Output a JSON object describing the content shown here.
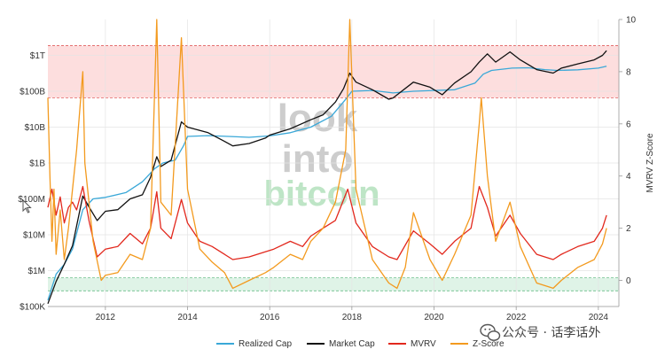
{
  "chart_data": {
    "type": "line",
    "x_ticks": [
      "2012",
      "2014",
      "2016",
      "2018",
      "2020",
      "2022",
      "2024"
    ],
    "x_range": [
      2010.6,
      2024.5
    ],
    "y_left_ticks": [
      "$100K",
      "$1M",
      "$10M",
      "$100M",
      "$1B",
      "$10B",
      "$100B",
      "$1T"
    ],
    "y_left_scale": "log",
    "y_left_range": [
      100000,
      10000000000000
    ],
    "y_right_ticks": [
      "0",
      "2",
      "4",
      "6",
      "8",
      "10"
    ],
    "y_right_range": [
      -1,
      10
    ],
    "y_right_label": "MVRV Z-Score",
    "bands": [
      {
        "name": "overvalued",
        "from": 7,
        "to": 9,
        "color": "#fddede"
      },
      {
        "name": "undervalued",
        "from": -0.4,
        "to": 0.1,
        "color": "#dff3e7"
      }
    ],
    "watermark": [
      "look",
      "into",
      "bitcoin"
    ],
    "series": [
      {
        "name": "Realized Cap",
        "color": "#3aa8d8",
        "axis": "left",
        "points": [
          [
            2010.6,
            150000.0
          ],
          [
            2010.8,
            800000.0
          ],
          [
            2011.0,
            1500000.0
          ],
          [
            2011.2,
            4000000.0
          ],
          [
            2011.45,
            50000000.0
          ],
          [
            2011.7,
            100000000.0
          ],
          [
            2012.0,
            110000000.0
          ],
          [
            2012.5,
            150000000.0
          ],
          [
            2012.9,
            300000000.0
          ],
          [
            2013.2,
            700000000.0
          ],
          [
            2013.4,
            1000000000.0
          ],
          [
            2013.7,
            1200000000.0
          ],
          [
            2013.9,
            3000000000.0
          ],
          [
            2014.0,
            5500000000.0
          ],
          [
            2014.5,
            5800000000.0
          ],
          [
            2015.0,
            5500000000.0
          ],
          [
            2015.5,
            5200000000.0
          ],
          [
            2016.0,
            5700000000.0
          ],
          [
            2016.5,
            7000000000.0
          ],
          [
            2017.0,
            10000000000.0
          ],
          [
            2017.5,
            20000000000.0
          ],
          [
            2017.9,
            70000000000.0
          ],
          [
            2018.0,
            100000000000.0
          ],
          [
            2018.5,
            105000000000.0
          ],
          [
            2019.0,
            90000000000.0
          ],
          [
            2019.5,
            100000000000.0
          ],
          [
            2020.0,
            105000000000.0
          ],
          [
            2020.5,
            110000000000.0
          ],
          [
            2021.0,
            170000000000.0
          ],
          [
            2021.2,
            300000000000.0
          ],
          [
            2021.4,
            380000000000.0
          ],
          [
            2021.9,
            440000000000.0
          ],
          [
            2022.3,
            450000000000.0
          ],
          [
            2022.7,
            400000000000.0
          ],
          [
            2023.0,
            380000000000.0
          ],
          [
            2023.5,
            395000000000.0
          ],
          [
            2024.0,
            440000000000.0
          ],
          [
            2024.2,
            500000000000.0
          ]
        ]
      },
      {
        "name": "Market Cap",
        "color": "#111111",
        "axis": "left",
        "points": [
          [
            2010.6,
            120000.0
          ],
          [
            2010.8,
            500000.0
          ],
          [
            2011.0,
            1500000.0
          ],
          [
            2011.2,
            5000000.0
          ],
          [
            2011.45,
            120000000.0
          ],
          [
            2011.6,
            60000000.0
          ],
          [
            2011.8,
            25000000.0
          ],
          [
            2012.0,
            45000000.0
          ],
          [
            2012.3,
            50000000.0
          ],
          [
            2012.6,
            100000000.0
          ],
          [
            2012.9,
            130000000.0
          ],
          [
            2013.1,
            400000000.0
          ],
          [
            2013.25,
            1500000000.0
          ],
          [
            2013.35,
            800000000.0
          ],
          [
            2013.6,
            1200000000.0
          ],
          [
            2013.85,
            14000000000.0
          ],
          [
            2014.0,
            10000000000.0
          ],
          [
            2014.5,
            7000000000.0
          ],
          [
            2014.9,
            4000000000.0
          ],
          [
            2015.1,
            3000000000.0
          ],
          [
            2015.5,
            3500000000.0
          ],
          [
            2015.9,
            5000000000.0
          ],
          [
            2016.0,
            6000000000.0
          ],
          [
            2016.5,
            9000000000.0
          ],
          [
            2017.0,
            16000000000.0
          ],
          [
            2017.3,
            22000000000.0
          ],
          [
            2017.6,
            50000000000.0
          ],
          [
            2017.8,
            120000000000.0
          ],
          [
            2017.95,
            320000000000.0
          ],
          [
            2018.1,
            180000000000.0
          ],
          [
            2018.5,
            110000000000.0
          ],
          [
            2018.9,
            60000000000.0
          ],
          [
            2019.0,
            65000000000.0
          ],
          [
            2019.5,
            180000000000.0
          ],
          [
            2019.9,
            130000000000.0
          ],
          [
            2020.2,
            80000000000.0
          ],
          [
            2020.5,
            170000000000.0
          ],
          [
            2020.9,
            350000000000.0
          ],
          [
            2021.1,
            650000000000.0
          ],
          [
            2021.3,
            1100000000000.0
          ],
          [
            2021.5,
            650000000000.0
          ],
          [
            2021.85,
            1250000000000.0
          ],
          [
            2022.1,
            750000000000.0
          ],
          [
            2022.5,
            400000000000.0
          ],
          [
            2022.9,
            320000000000.0
          ],
          [
            2023.1,
            440000000000.0
          ],
          [
            2023.5,
            580000000000.0
          ],
          [
            2023.9,
            750000000000.0
          ],
          [
            2024.1,
            1000000000000.0
          ],
          [
            2024.2,
            1350000000000.0
          ]
        ]
      },
      {
        "name": "MVRV",
        "color": "#e2281d",
        "axis": "right",
        "points": [
          [
            2010.6,
            2.8
          ],
          [
            2010.7,
            3.5
          ],
          [
            2010.8,
            2.5
          ],
          [
            2010.9,
            3.2
          ],
          [
            2011.0,
            2.2
          ],
          [
            2011.1,
            2.8
          ],
          [
            2011.2,
            3.0
          ],
          [
            2011.3,
            2.7
          ],
          [
            2011.45,
            3.6
          ],
          [
            2011.6,
            2.3
          ],
          [
            2011.8,
            0.9
          ],
          [
            2012.0,
            1.2
          ],
          [
            2012.3,
            1.3
          ],
          [
            2012.6,
            1.8
          ],
          [
            2012.9,
            1.4
          ],
          [
            2013.1,
            2.0
          ],
          [
            2013.25,
            3.4
          ],
          [
            2013.35,
            2.0
          ],
          [
            2013.6,
            1.6
          ],
          [
            2013.85,
            3.1
          ],
          [
            2014.0,
            2.2
          ],
          [
            2014.3,
            1.5
          ],
          [
            2014.6,
            1.3
          ],
          [
            2014.9,
            1.0
          ],
          [
            2015.1,
            0.8
          ],
          [
            2015.5,
            0.9
          ],
          [
            2015.9,
            1.1
          ],
          [
            2016.1,
            1.2
          ],
          [
            2016.5,
            1.5
          ],
          [
            2016.8,
            1.3
          ],
          [
            2017.0,
            1.7
          ],
          [
            2017.3,
            2.0
          ],
          [
            2017.6,
            2.3
          ],
          [
            2017.9,
            3.5
          ],
          [
            2018.1,
            2.2
          ],
          [
            2018.5,
            1.3
          ],
          [
            2018.9,
            0.9
          ],
          [
            2019.1,
            0.8
          ],
          [
            2019.5,
            1.9
          ],
          [
            2019.9,
            1.4
          ],
          [
            2020.2,
            1.0
          ],
          [
            2020.5,
            1.5
          ],
          [
            2020.9,
            2.0
          ],
          [
            2021.1,
            3.6
          ],
          [
            2021.3,
            2.8
          ],
          [
            2021.5,
            1.7
          ],
          [
            2021.85,
            2.5
          ],
          [
            2022.1,
            1.8
          ],
          [
            2022.5,
            1.0
          ],
          [
            2022.9,
            0.8
          ],
          [
            2023.1,
            1.0
          ],
          [
            2023.5,
            1.3
          ],
          [
            2023.9,
            1.5
          ],
          [
            2024.1,
            2.0
          ],
          [
            2024.2,
            2.5
          ]
        ]
      },
      {
        "name": "Z-Score",
        "color": "#f39a1e",
        "axis": "right",
        "points": [
          [
            2010.6,
            7.0
          ],
          [
            2010.65,
            4.0
          ],
          [
            2010.7,
            1.5
          ],
          [
            2010.75,
            3.5
          ],
          [
            2010.8,
            1.0
          ],
          [
            2010.9,
            2.7
          ],
          [
            2011.0,
            0.8
          ],
          [
            2011.1,
            2.0
          ],
          [
            2011.2,
            3.5
          ],
          [
            2011.3,
            5.0
          ],
          [
            2011.45,
            8.0
          ],
          [
            2011.5,
            4.5
          ],
          [
            2011.7,
            1.5
          ],
          [
            2011.9,
            0.0
          ],
          [
            2012.0,
            0.2
          ],
          [
            2012.3,
            0.3
          ],
          [
            2012.6,
            1.0
          ],
          [
            2012.9,
            0.8
          ],
          [
            2013.1,
            2.0
          ],
          [
            2013.25,
            10.0
          ],
          [
            2013.35,
            3.0
          ],
          [
            2013.6,
            2.5
          ],
          [
            2013.85,
            9.3
          ],
          [
            2014.0,
            3.5
          ],
          [
            2014.3,
            1.2
          ],
          [
            2014.6,
            0.7
          ],
          [
            2014.9,
            0.3
          ],
          [
            2015.1,
            -0.3
          ],
          [
            2015.5,
            0.0
          ],
          [
            2015.9,
            0.3
          ],
          [
            2016.1,
            0.5
          ],
          [
            2016.5,
            1.0
          ],
          [
            2016.8,
            0.8
          ],
          [
            2017.0,
            1.5
          ],
          [
            2017.3,
            2.0
          ],
          [
            2017.6,
            3.0
          ],
          [
            2017.85,
            5.0
          ],
          [
            2017.95,
            10.0
          ],
          [
            2018.1,
            3.5
          ],
          [
            2018.5,
            0.8
          ],
          [
            2018.9,
            -0.1
          ],
          [
            2019.1,
            -0.3
          ],
          [
            2019.3,
            0.5
          ],
          [
            2019.5,
            2.6
          ],
          [
            2019.9,
            0.8
          ],
          [
            2020.2,
            0.0
          ],
          [
            2020.5,
            1.0
          ],
          [
            2020.9,
            2.5
          ],
          [
            2021.1,
            6.0
          ],
          [
            2021.15,
            7.0
          ],
          [
            2021.3,
            4.0
          ],
          [
            2021.5,
            1.5
          ],
          [
            2021.85,
            3.0
          ],
          [
            2022.1,
            1.3
          ],
          [
            2022.5,
            -0.1
          ],
          [
            2022.9,
            -0.3
          ],
          [
            2023.1,
            0.0
          ],
          [
            2023.5,
            0.5
          ],
          [
            2023.9,
            0.8
          ],
          [
            2024.1,
            1.4
          ],
          [
            2024.2,
            2.0
          ]
        ]
      }
    ],
    "legend_position": "bottom-center"
  },
  "brand": {
    "icon": "wechat-icon",
    "text": "公众号 · 话李话外"
  },
  "colors": {
    "grid": "#e4e4e4",
    "band_line": "#e06060",
    "band_line_green": "#6cbf8a",
    "watermark_gray": "#c8c8c8",
    "watermark_green": "#b8e3c0"
  }
}
